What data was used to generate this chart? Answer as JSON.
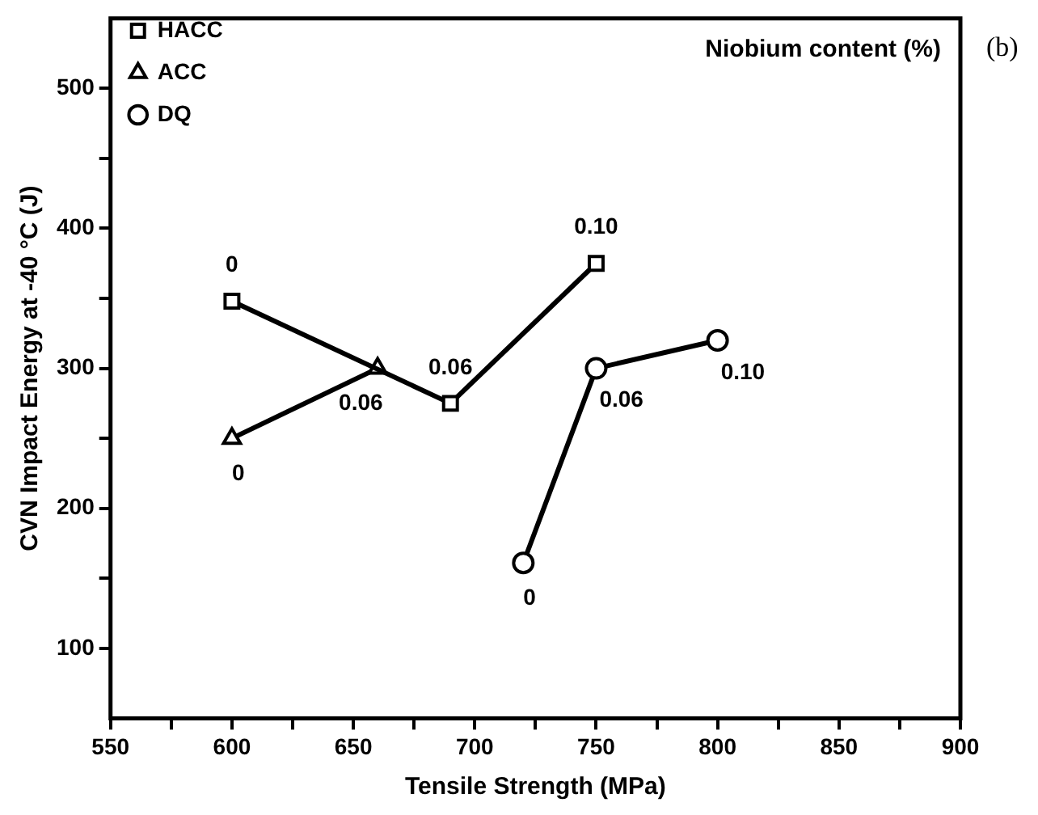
{
  "chart_data": {
    "type": "line",
    "xlabel": "Tensile Strength (MPa)",
    "ylabel": "CVN Impact Energy at -40 °C (J)",
    "xlim": [
      550,
      900
    ],
    "xticks": [
      550,
      {
        "value": 575,
        "label": null
      },
      600,
      {
        "value": 625,
        "label": null
      },
      650,
      {
        "value": 675,
        "label": null
      },
      700,
      {
        "value": 725,
        "label": null
      },
      750,
      {
        "value": 775,
        "label": null
      },
      800,
      {
        "value": 825,
        "label": null
      },
      850,
      {
        "value": 875,
        "label": null
      },
      900
    ],
    "ylim": [
      50,
      550
    ],
    "yticks": [
      100,
      {
        "value": 150,
        "label": null
      },
      200,
      {
        "value": 250,
        "label": null
      },
      300,
      {
        "value": 350,
        "label": null
      },
      400,
      {
        "value": 450,
        "label": null
      },
      500
    ],
    "grid": false,
    "legend": "top left",
    "line_style": "solid",
    "series": [
      {
        "name": "HACC",
        "color": "#000000",
        "marker": "square",
        "x": [
          600,
          690,
          750
        ],
        "values": [
          348,
          275,
          375
        ]
      },
      {
        "name": "ACC",
        "color": "#000000",
        "marker": "triangle",
        "x": [
          600,
          660
        ],
        "values": [
          250,
          300
        ]
      },
      {
        "name": "DQ",
        "color": "#000000",
        "marker": "circle",
        "x": [
          720,
          750,
          800
        ],
        "values": [
          161,
          300,
          320
        ]
      }
    ],
    "annotations": [
      "Niobium content (%)",
      "(b)",
      {
        "text": "0",
        "x": 600,
        "y": 348
      },
      {
        "text": "0.06",
        "x": 690,
        "y": 275
      },
      {
        "text": "0.10",
        "x": 750,
        "y": 375
      },
      {
        "text": "0",
        "x": 600,
        "y": 250
      },
      {
        "text": "0.06",
        "x": 660,
        "y": 300
      },
      {
        "text": "0",
        "x": 720,
        "y": 161
      },
      {
        "text": "0.06",
        "x": 750,
        "y": 300
      },
      {
        "text": "0.10",
        "x": 800,
        "y": 320
      }
    ]
  }
}
